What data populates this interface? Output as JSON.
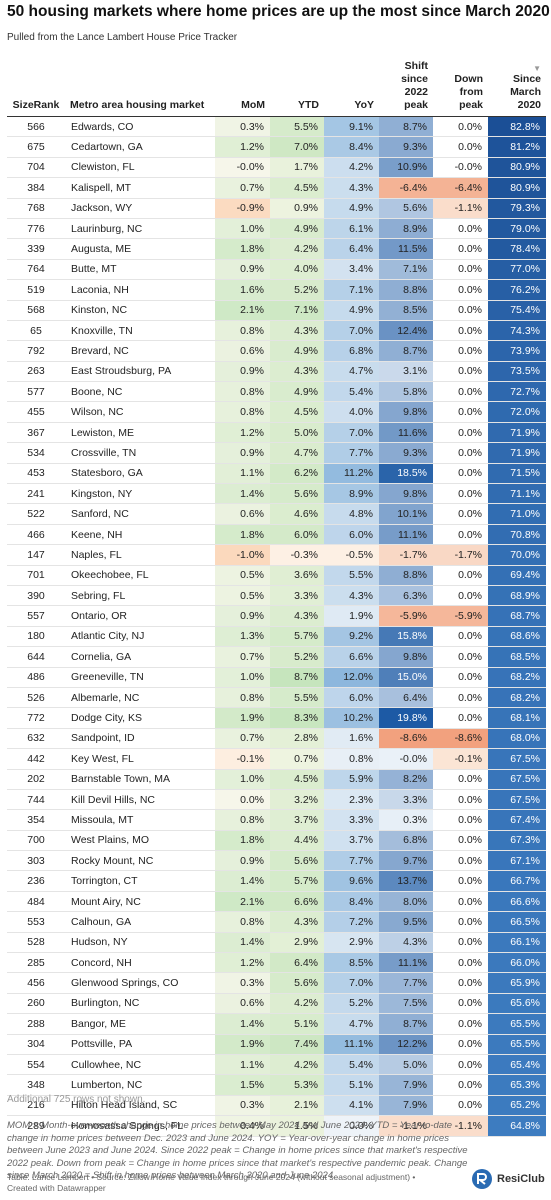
{
  "header": {
    "title": "50 housing markets where home prices are up the most since March 2020",
    "subtitle": "Pulled from the Lance Lambert House Price Tracker"
  },
  "table": {
    "columns": [
      "SizeRank",
      "Metro area housing market",
      "MoM",
      "YTD",
      "YoY",
      "Shift since 2022 peak",
      "Down from peak",
      "Since March 2020"
    ],
    "sort_indicator": "▼",
    "rows": [
      [
        "566",
        "Edwards, CO",
        "0.3%",
        "5.5%",
        "9.1%",
        "8.7%",
        "0.0%",
        "82.8%"
      ],
      [
        "675",
        "Cedartown, GA",
        "1.2%",
        "7.0%",
        "8.4%",
        "9.3%",
        "0.0%",
        "81.2%"
      ],
      [
        "704",
        "Clewiston, FL",
        "-0.0%",
        "1.7%",
        "4.2%",
        "10.9%",
        "-0.0%",
        "80.9%"
      ],
      [
        "384",
        "Kalispell, MT",
        "0.7%",
        "4.5%",
        "4.3%",
        "-6.4%",
        "-6.4%",
        "80.9%"
      ],
      [
        "768",
        "Jackson, WY",
        "-0.9%",
        "0.9%",
        "4.9%",
        "5.6%",
        "-1.1%",
        "79.3%"
      ],
      [
        "776",
        "Laurinburg, NC",
        "1.0%",
        "4.9%",
        "6.1%",
        "8.9%",
        "0.0%",
        "79.0%"
      ],
      [
        "339",
        "Augusta, ME",
        "1.8%",
        "4.2%",
        "6.4%",
        "11.5%",
        "0.0%",
        "78.4%"
      ],
      [
        "764",
        "Butte, MT",
        "0.9%",
        "4.0%",
        "3.4%",
        "7.1%",
        "0.0%",
        "77.0%"
      ],
      [
        "519",
        "Laconia, NH",
        "1.6%",
        "5.2%",
        "7.1%",
        "8.8%",
        "0.0%",
        "76.2%"
      ],
      [
        "568",
        "Kinston, NC",
        "2.1%",
        "7.1%",
        "4.9%",
        "8.5%",
        "0.0%",
        "75.4%"
      ],
      [
        "65",
        "Knoxville, TN",
        "0.8%",
        "4.3%",
        "7.0%",
        "12.4%",
        "0.0%",
        "74.3%"
      ],
      [
        "792",
        "Brevard, NC",
        "0.6%",
        "4.9%",
        "6.8%",
        "8.7%",
        "0.0%",
        "73.9%"
      ],
      [
        "263",
        "East Stroudsburg, PA",
        "0.9%",
        "4.3%",
        "4.7%",
        "3.1%",
        "0.0%",
        "73.5%"
      ],
      [
        "577",
        "Boone, NC",
        "0.8%",
        "4.9%",
        "5.4%",
        "5.8%",
        "0.0%",
        "72.7%"
      ],
      [
        "455",
        "Wilson, NC",
        "0.8%",
        "4.5%",
        "4.0%",
        "9.8%",
        "0.0%",
        "72.0%"
      ],
      [
        "367",
        "Lewiston, ME",
        "1.2%",
        "5.0%",
        "7.0%",
        "11.6%",
        "0.0%",
        "71.9%"
      ],
      [
        "534",
        "Crossville, TN",
        "0.9%",
        "4.7%",
        "7.7%",
        "9.3%",
        "0.0%",
        "71.9%"
      ],
      [
        "453",
        "Statesboro, GA",
        "1.1%",
        "6.2%",
        "11.2%",
        "18.5%",
        "0.0%",
        "71.5%"
      ],
      [
        "241",
        "Kingston, NY",
        "1.4%",
        "5.6%",
        "8.9%",
        "9.8%",
        "0.0%",
        "71.1%"
      ],
      [
        "522",
        "Sanford, NC",
        "0.6%",
        "4.6%",
        "4.8%",
        "10.1%",
        "0.0%",
        "71.0%"
      ],
      [
        "466",
        "Keene, NH",
        "1.8%",
        "6.0%",
        "6.0%",
        "11.1%",
        "0.0%",
        "70.8%"
      ],
      [
        "147",
        "Naples, FL",
        "-1.0%",
        "-0.3%",
        "-0.5%",
        "-1.7%",
        "-1.7%",
        "70.0%"
      ],
      [
        "701",
        "Okeechobee, FL",
        "0.5%",
        "3.6%",
        "5.5%",
        "8.8%",
        "0.0%",
        "69.4%"
      ],
      [
        "390",
        "Sebring, FL",
        "0.5%",
        "3.3%",
        "4.3%",
        "6.3%",
        "0.0%",
        "68.9%"
      ],
      [
        "557",
        "Ontario, OR",
        "0.9%",
        "4.3%",
        "1.9%",
        "-5.9%",
        "-5.9%",
        "68.7%"
      ],
      [
        "180",
        "Atlantic City, NJ",
        "1.3%",
        "5.7%",
        "9.2%",
        "15.8%",
        "0.0%",
        "68.6%"
      ],
      [
        "644",
        "Cornelia, GA",
        "0.7%",
        "5.2%",
        "6.6%",
        "9.8%",
        "0.0%",
        "68.5%"
      ],
      [
        "486",
        "Greeneville, TN",
        "1.0%",
        "8.7%",
        "12.0%",
        "15.0%",
        "0.0%",
        "68.2%"
      ],
      [
        "526",
        "Albemarle, NC",
        "0.8%",
        "5.5%",
        "6.0%",
        "6.4%",
        "0.0%",
        "68.2%"
      ],
      [
        "772",
        "Dodge City, KS",
        "1.9%",
        "8.3%",
        "10.2%",
        "19.8%",
        "0.0%",
        "68.1%"
      ],
      [
        "632",
        "Sandpoint, ID",
        "0.7%",
        "2.8%",
        "1.6%",
        "-8.6%",
        "-8.6%",
        "68.0%"
      ],
      [
        "442",
        "Key West, FL",
        "-0.1%",
        "0.7%",
        "0.8%",
        "-0.0%",
        "-0.1%",
        "67.5%"
      ],
      [
        "202",
        "Barnstable Town, MA",
        "1.0%",
        "4.5%",
        "5.9%",
        "8.2%",
        "0.0%",
        "67.5%"
      ],
      [
        "744",
        "Kill Devil Hills, NC",
        "0.0%",
        "3.2%",
        "2.3%",
        "3.3%",
        "0.0%",
        "67.5%"
      ],
      [
        "354",
        "Missoula, MT",
        "0.8%",
        "3.7%",
        "3.3%",
        "0.3%",
        "0.0%",
        "67.4%"
      ],
      [
        "700",
        "West Plains, MO",
        "1.8%",
        "4.4%",
        "3.7%",
        "6.8%",
        "0.0%",
        "67.3%"
      ],
      [
        "303",
        "Rocky Mount, NC",
        "0.9%",
        "5.6%",
        "7.7%",
        "9.7%",
        "0.0%",
        "67.1%"
      ],
      [
        "236",
        "Torrington, CT",
        "1.4%",
        "5.7%",
        "9.6%",
        "13.7%",
        "0.0%",
        "66.7%"
      ],
      [
        "484",
        "Mount Airy, NC",
        "2.1%",
        "6.6%",
        "8.4%",
        "8.0%",
        "0.0%",
        "66.6%"
      ],
      [
        "553",
        "Calhoun, GA",
        "0.8%",
        "4.3%",
        "7.2%",
        "9.5%",
        "0.0%",
        "66.5%"
      ],
      [
        "528",
        "Hudson, NY",
        "1.4%",
        "2.9%",
        "2.9%",
        "4.3%",
        "0.0%",
        "66.1%"
      ],
      [
        "285",
        "Concord, NH",
        "1.2%",
        "6.4%",
        "8.5%",
        "11.1%",
        "0.0%",
        "66.0%"
      ],
      [
        "456",
        "Glenwood Springs, CO",
        "0.3%",
        "5.6%",
        "7.0%",
        "7.7%",
        "0.0%",
        "65.9%"
      ],
      [
        "260",
        "Burlington, NC",
        "0.6%",
        "4.2%",
        "5.2%",
        "7.5%",
        "0.0%",
        "65.6%"
      ],
      [
        "288",
        "Bangor, ME",
        "1.4%",
        "5.1%",
        "4.7%",
        "8.7%",
        "0.0%",
        "65.5%"
      ],
      [
        "304",
        "Pottsville, PA",
        "1.9%",
        "7.4%",
        "11.1%",
        "12.2%",
        "0.0%",
        "65.5%"
      ],
      [
        "554",
        "Cullowhee, NC",
        "1.1%",
        "4.2%",
        "5.4%",
        "5.0%",
        "0.0%",
        "65.4%"
      ],
      [
        "348",
        "Lumberton, NC",
        "1.5%",
        "5.3%",
        "5.1%",
        "7.9%",
        "0.0%",
        "65.3%"
      ],
      [
        "216",
        "Hilton Head Island, SC",
        "0.3%",
        "2.1%",
        "4.1%",
        "7.9%",
        "0.0%",
        "65.2%"
      ],
      [
        "289",
        "Homosassa Springs, FL",
        "0.4%",
        "1.5%",
        "0.0%",
        "-1.1%",
        "-1.1%",
        "64.8%"
      ]
    ]
  },
  "footer": {
    "more_rows": "Additional 725 rows not shown.",
    "notes": "MOM = Month-over-month change in home prices between May 2024 and June 2024. YTD = Year-to-date change in home prices between Dec. 2023 and June 2024. YOY = Year-over-year change in home prices between June 2023 and June 2024. Since 2022 peak = Change in home prices since that market's respective 2022 peak. Down from peak = Change in home prices since that market's respective pandemic peak. Change since March 2020 = Shift in home prices between March 2020 and June 2024.",
    "source": "Table: Lance Lambert • Source: Zillow Home Value Index through June 2024 (without seasonal adjustment) • Created with Datawrapper",
    "logo": "ResiClub"
  }
}
